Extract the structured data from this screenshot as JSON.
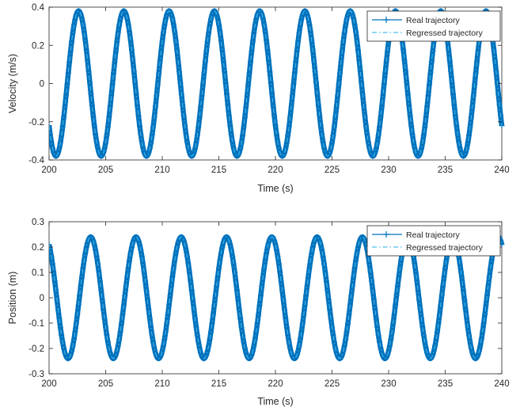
{
  "chart_data": [
    {
      "type": "line",
      "xlabel": "Time (s)",
      "ylabel": "Velocity (m/s)",
      "xlim": [
        200,
        240
      ],
      "ylim": [
        -0.4,
        0.4
      ],
      "xticks": [
        200,
        205,
        210,
        215,
        220,
        225,
        230,
        235,
        240
      ],
      "xtick_labels": [
        "200",
        "205",
        "210",
        "215",
        "220",
        "225",
        "230",
        "235",
        "240"
      ],
      "yticks": [
        -0.4,
        -0.2,
        0,
        0.2,
        0.4
      ],
      "ytick_labels": [
        "-0.4",
        "-0.2",
        "0",
        "0.2",
        "0.4"
      ],
      "grid": false,
      "legend_position": "top-right",
      "signal": {
        "shape": "sinusoid",
        "amplitude": 0.38,
        "period": 4.0,
        "phase_reference_x": 200,
        "phase_reference_y": -0.22,
        "initial_direction": "decreasing"
      },
      "series": [
        {
          "name": "Real trajectory",
          "color": "#0072bd",
          "line_style": "solid",
          "marker": "+"
        },
        {
          "name": "Regressed trajectory",
          "color": "#4dbeee",
          "line_style": "dash-dot",
          "marker": "none"
        }
      ]
    },
    {
      "type": "line",
      "xlabel": "Time (s)",
      "ylabel": "Position (m)",
      "xlim": [
        200,
        240
      ],
      "ylim": [
        -0.3,
        0.3
      ],
      "xticks": [
        200,
        205,
        210,
        215,
        220,
        225,
        230,
        235,
        240
      ],
      "xtick_labels": [
        "200",
        "205",
        "210",
        "215",
        "220",
        "225",
        "230",
        "235",
        "240"
      ],
      "yticks": [
        -0.3,
        -0.2,
        -0.1,
        0,
        0.1,
        0.2,
        0.3
      ],
      "ytick_labels": [
        "-0.3",
        "-0.2",
        "-0.1",
        "0",
        "0.1",
        "0.2",
        "0.3"
      ],
      "grid": false,
      "legend_position": "top-right",
      "signal": {
        "shape": "sinusoid",
        "amplitude": 0.24,
        "period": 4.0,
        "phase_reference_x": 200,
        "phase_reference_y": 0.21,
        "initial_direction": "decreasing"
      },
      "series": [
        {
          "name": "Real trajectory",
          "color": "#0072bd",
          "line_style": "solid",
          "marker": "+"
        },
        {
          "name": "Regressed trajectory",
          "color": "#4dbeee",
          "line_style": "dash-dot",
          "marker": "none"
        }
      ]
    }
  ]
}
